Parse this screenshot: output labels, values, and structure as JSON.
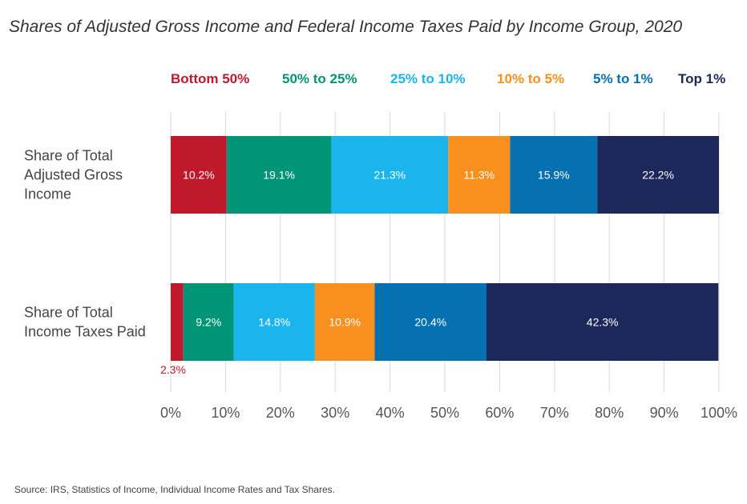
{
  "chart_data": {
    "type": "bar",
    "orientation": "horizontal",
    "stacked": true,
    "title": "Shares of Adjusted Gross Income and Federal Income Taxes Paid by Income Group, 2020",
    "source": "Source: IRS, Statistics of Income, Individual Income Rates and Tax Shares.",
    "categories": [
      {
        "label_lines": [
          "Share of Total",
          "Adjusted Gross",
          "Income"
        ]
      },
      {
        "label_lines": [
          "Share of Total",
          "Income Taxes Paid"
        ]
      }
    ],
    "series": [
      {
        "name": "Bottom 50%",
        "color": "#c0192b",
        "values": [
          10.2,
          2.3
        ],
        "value_labels": [
          "10.2%",
          "2.3%"
        ]
      },
      {
        "name": "50% to 25%",
        "color": "#009576",
        "values": [
          19.1,
          9.2
        ],
        "value_labels": [
          "19.1%",
          "9.2%"
        ]
      },
      {
        "name": "25% to 10%",
        "color": "#1ab5ec",
        "values": [
          21.3,
          14.8
        ],
        "value_labels": [
          "21.3%",
          "14.8%"
        ]
      },
      {
        "name": "10% to 5%",
        "color": "#f7901e",
        "values": [
          11.3,
          10.9
        ],
        "value_labels": [
          "11.3%",
          "10.9%"
        ]
      },
      {
        "name": "5% to 1%",
        "color": "#0571b0",
        "values": [
          15.9,
          20.4
        ],
        "value_labels": [
          "15.9%",
          "20.4%"
        ]
      },
      {
        "name": "Top 1%",
        "color": "#1b2859",
        "values": [
          22.2,
          42.3
        ],
        "value_labels": [
          "22.2%",
          "42.3%"
        ]
      }
    ],
    "xlim": [
      0,
      100
    ],
    "x_ticks": [
      0,
      10,
      20,
      30,
      40,
      50,
      60,
      70,
      80,
      90,
      100
    ],
    "x_tick_labels": [
      "0%",
      "10%",
      "20%",
      "30%",
      "40%",
      "50%",
      "60%",
      "70%",
      "80%",
      "90%",
      "100%"
    ],
    "grid": "vertical",
    "legend_position": "top"
  }
}
